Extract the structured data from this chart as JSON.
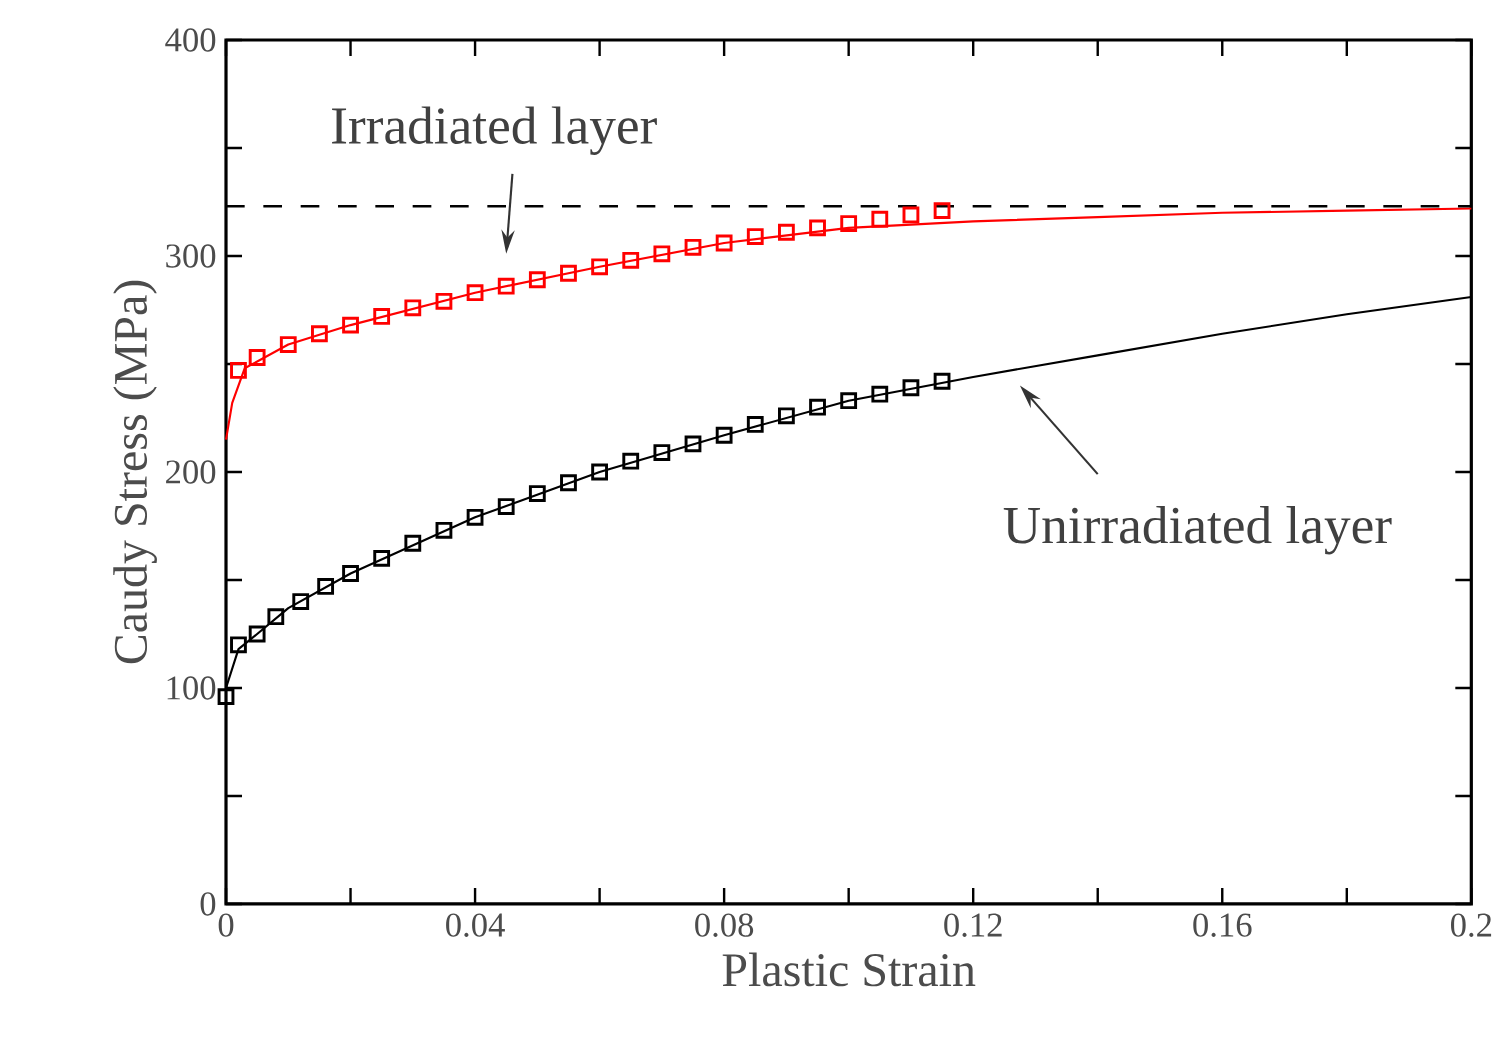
{
  "chart_data": {
    "type": "scatter",
    "xlabel": "Plastic Strain",
    "ylabel": "Caudy Stress (MPa)",
    "xlim": [
      0,
      0.2
    ],
    "ylim": [
      0,
      400
    ],
    "xticks": [
      0,
      {
        "value": 0.02,
        "label": null
      },
      0.04,
      {
        "value": 0.06,
        "label": null
      },
      0.08,
      {
        "value": 0.1,
        "label": null
      },
      0.12,
      {
        "value": 0.14,
        "label": null
      },
      0.16,
      {
        "value": 0.18,
        "label": null
      },
      0.2
    ],
    "yticks": [
      0,
      {
        "value": 50,
        "label": null
      },
      100,
      {
        "value": 150,
        "label": null
      },
      200,
      {
        "value": 250,
        "label": null
      },
      300,
      {
        "value": 350,
        "label": null
      },
      400
    ],
    "series": [
      {
        "type": "line",
        "color": "#ff0000",
        "x": [
          0,
          0.001,
          0.003,
          0.01,
          0.02,
          0.04,
          0.06,
          0.08,
          0.1,
          0.12,
          0.14,
          0.16,
          0.18,
          0.2
        ],
        "values": [
          215,
          232,
          248,
          259,
          268,
          283,
          295,
          306,
          313,
          316,
          318,
          320,
          321,
          322
        ]
      },
      {
        "marker": "square",
        "color": "#ff0000",
        "x": [
          0.002,
          0.005,
          0.01,
          0.015,
          0.02,
          0.025,
          0.03,
          0.035,
          0.04,
          0.045,
          0.05,
          0.055,
          0.06,
          0.065,
          0.07,
          0.075,
          0.08,
          0.085,
          0.09,
          0.095,
          0.1,
          0.105,
          0.11,
          0.115
        ],
        "values": [
          247,
          253,
          259,
          264,
          268,
          272,
          276,
          279,
          283,
          286,
          289,
          292,
          295,
          298,
          301,
          304,
          306,
          309,
          311,
          313,
          315,
          317,
          319,
          321
        ]
      },
      {
        "type": "line",
        "color": "#000000",
        "x": [
          0,
          0.002,
          0.005,
          0.01,
          0.02,
          0.04,
          0.06,
          0.08,
          0.1,
          0.12,
          0.14,
          0.16,
          0.18,
          0.2
        ],
        "values": [
          100,
          118,
          125,
          137,
          153,
          179,
          200,
          217,
          233,
          244,
          254,
          264,
          273,
          281
        ]
      },
      {
        "marker": "square",
        "color": "#000000",
        "x": [
          0,
          0.002,
          0.005,
          0.008,
          0.012,
          0.016,
          0.02,
          0.025,
          0.03,
          0.035,
          0.04,
          0.045,
          0.05,
          0.055,
          0.06,
          0.065,
          0.07,
          0.075,
          0.08,
          0.085,
          0.09,
          0.095,
          0.1,
          0.105,
          0.11,
          0.115
        ],
        "values": [
          96,
          120,
          125,
          133,
          140,
          147,
          153,
          160,
          167,
          173,
          179,
          184,
          190,
          195,
          200,
          205,
          209,
          213,
          217,
          222,
          226,
          230,
          233,
          236,
          239,
          242
        ]
      }
    ],
    "ref_lines": [
      {
        "axis": "y",
        "value": 323,
        "color": "#000000",
        "line_style": "dashed"
      }
    ],
    "annotations": [
      {
        "text": "Irradiated layer",
        "x": 0.048,
        "y": 293
      },
      {
        "text": "Unirradiated layer",
        "x": 0.126,
        "y": 243
      }
    ]
  }
}
